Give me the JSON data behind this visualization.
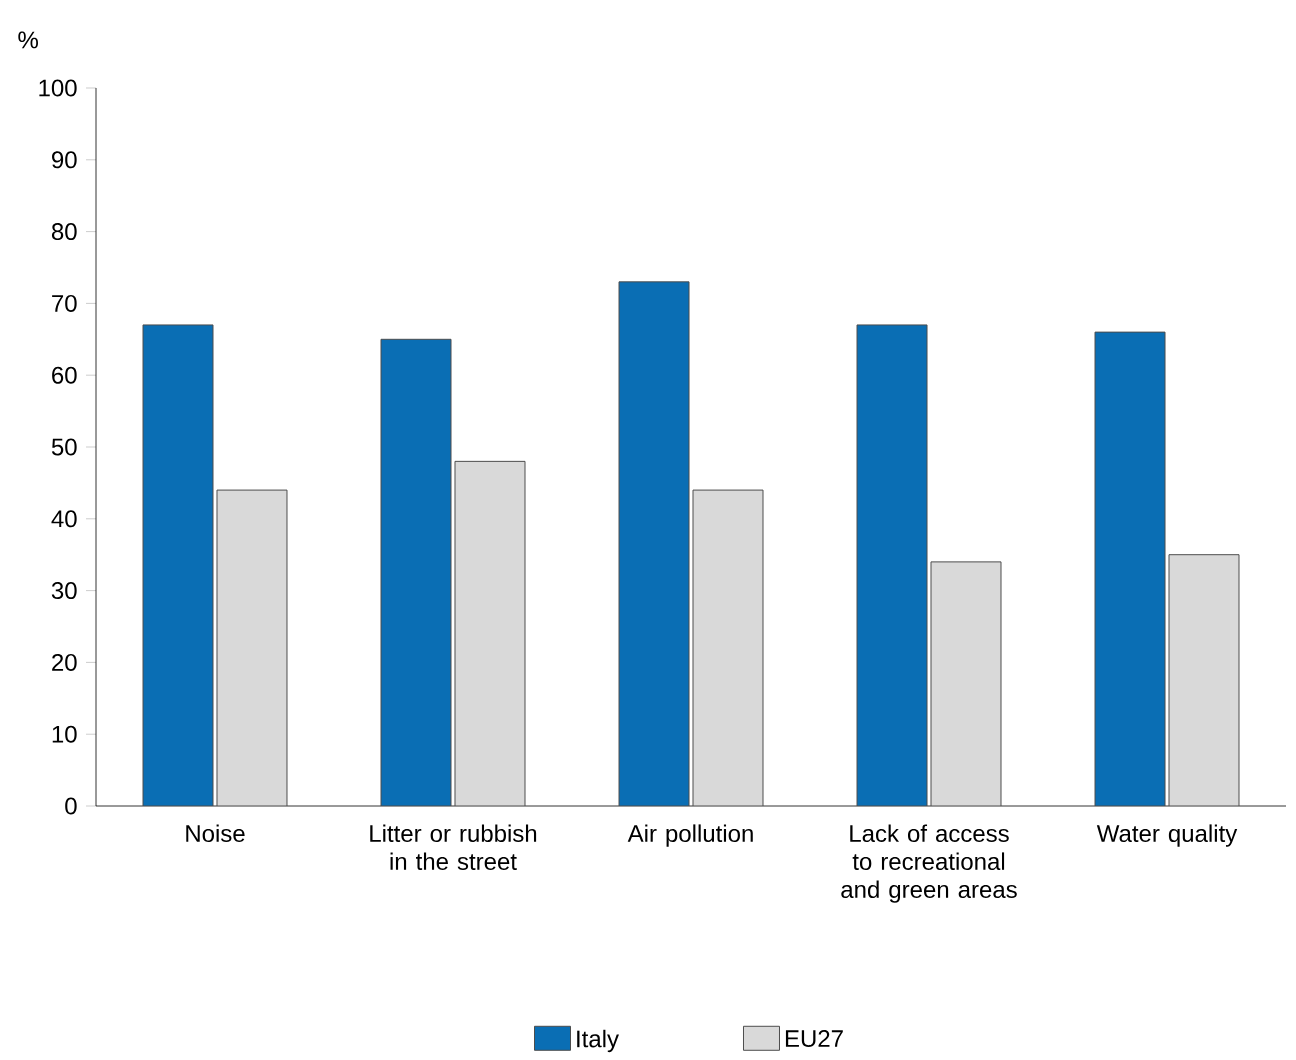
{
  "chart_data": {
    "type": "bar",
    "ylabel": "%",
    "categories": [
      "Noise",
      "Litter or rubbish in the street",
      "Air pollution",
      "Lack of access to recreational and green areas",
      "Water quality"
    ],
    "series": [
      {
        "name": "Italy",
        "color": "#0a6eb4",
        "values": [
          67,
          65,
          73,
          67,
          66
        ]
      },
      {
        "name": "EU27",
        "color": "#d9d9d9",
        "values": [
          44,
          48,
          44,
          34,
          35
        ]
      }
    ],
    "ylim": [
      0,
      100
    ],
    "yticks": [
      0,
      10,
      20,
      30,
      40,
      50,
      60,
      70,
      80,
      90,
      100
    ],
    "legend": "bottom"
  }
}
